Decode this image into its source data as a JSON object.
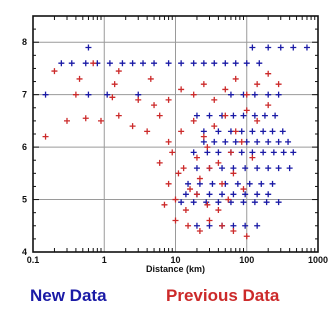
{
  "chart_data": {
    "type": "scatter",
    "title": "",
    "xlabel": "Distance (km)",
    "ylabel": "",
    "xscale": "log",
    "xlim": [
      0.1,
      1000
    ],
    "ylim": [
      4,
      8.5
    ],
    "xticks": [
      {
        "value": 0.1,
        "label": "0.1"
      },
      {
        "value": 1,
        "label": "1"
      },
      {
        "value": 10,
        "label": "10"
      },
      {
        "value": 100,
        "label": "100"
      },
      {
        "value": 1000,
        "label": "1000"
      }
    ],
    "yticks": [
      {
        "value": 4,
        "label": "4"
      },
      {
        "value": 5,
        "label": "5"
      },
      {
        "value": 6,
        "label": "6"
      },
      {
        "value": 7,
        "label": "7"
      },
      {
        "value": 8,
        "label": "8"
      }
    ],
    "grid": true,
    "legend_position": "bottom",
    "series": [
      {
        "name": "New Data",
        "color": "#1a1aa6",
        "marker": "plus",
        "points": [
          [
            0.25,
            7.6
          ],
          [
            0.35,
            7.6
          ],
          [
            0.55,
            7.6
          ],
          [
            0.8,
            7.6
          ],
          [
            1.2,
            7.6
          ],
          [
            1.8,
            7.6
          ],
          [
            2.5,
            7.6
          ],
          [
            3.5,
            7.6
          ],
          [
            5,
            7.6
          ],
          [
            8,
            7.6
          ],
          [
            12,
            7.6
          ],
          [
            18,
            7.6
          ],
          [
            25,
            7.6
          ],
          [
            35,
            7.6
          ],
          [
            50,
            7.6
          ],
          [
            70,
            7.6
          ],
          [
            100,
            7.6
          ],
          [
            150,
            7.6
          ],
          [
            0.6,
            7.9
          ],
          [
            120,
            7.9
          ],
          [
            200,
            7.9
          ],
          [
            300,
            7.9
          ],
          [
            450,
            7.9
          ],
          [
            700,
            7.9
          ],
          [
            0.15,
            7.0
          ],
          [
            0.6,
            7.0
          ],
          [
            1.1,
            7.0
          ],
          [
            3,
            7.0
          ],
          [
            60,
            7.0
          ],
          [
            90,
            7.0
          ],
          [
            130,
            7.0
          ],
          [
            200,
            7.0
          ],
          [
            280,
            7.0
          ],
          [
            20,
            6.6
          ],
          [
            30,
            6.6
          ],
          [
            45,
            6.6
          ],
          [
            65,
            6.6
          ],
          [
            90,
            6.6
          ],
          [
            130,
            6.6
          ],
          [
            180,
            6.6
          ],
          [
            250,
            6.6
          ],
          [
            25,
            6.3
          ],
          [
            40,
            6.3
          ],
          [
            60,
            6.3
          ],
          [
            85,
            6.3
          ],
          [
            120,
            6.3
          ],
          [
            170,
            6.3
          ],
          [
            230,
            6.3
          ],
          [
            320,
            6.3
          ],
          [
            25,
            6.1
          ],
          [
            35,
            6.1
          ],
          [
            50,
            6.1
          ],
          [
            70,
            6.1
          ],
          [
            100,
            6.1
          ],
          [
            140,
            6.1
          ],
          [
            200,
            6.1
          ],
          [
            280,
            6.1
          ],
          [
            380,
            6.1
          ],
          [
            18,
            5.9
          ],
          [
            28,
            5.9
          ],
          [
            40,
            5.9
          ],
          [
            60,
            5.9
          ],
          [
            85,
            5.9
          ],
          [
            120,
            5.9
          ],
          [
            170,
            5.9
          ],
          [
            240,
            5.9
          ],
          [
            330,
            5.9
          ],
          [
            450,
            5.9
          ],
          [
            20,
            5.6
          ],
          [
            30,
            5.6
          ],
          [
            45,
            5.6
          ],
          [
            65,
            5.6
          ],
          [
            95,
            5.6
          ],
          [
            140,
            5.6
          ],
          [
            200,
            5.6
          ],
          [
            280,
            5.6
          ],
          [
            400,
            5.6
          ],
          [
            15,
            5.3
          ],
          [
            22,
            5.3
          ],
          [
            33,
            5.3
          ],
          [
            50,
            5.3
          ],
          [
            75,
            5.3
          ],
          [
            110,
            5.3
          ],
          [
            160,
            5.3
          ],
          [
            230,
            5.3
          ],
          [
            14,
            5.1
          ],
          [
            20,
            5.1
          ],
          [
            30,
            5.1
          ],
          [
            45,
            5.1
          ],
          [
            65,
            5.1
          ],
          [
            95,
            5.1
          ],
          [
            140,
            5.1
          ],
          [
            200,
            5.1
          ],
          [
            12,
            4.95
          ],
          [
            18,
            4.95
          ],
          [
            27,
            4.95
          ],
          [
            40,
            4.95
          ],
          [
            60,
            4.95
          ],
          [
            90,
            4.95
          ],
          [
            130,
            4.95
          ],
          [
            190,
            4.95
          ],
          [
            280,
            4.95
          ],
          [
            20,
            4.5
          ],
          [
            30,
            4.5
          ],
          [
            45,
            4.5
          ],
          [
            65,
            4.5
          ],
          [
            95,
            4.5
          ],
          [
            140,
            4.5
          ]
        ]
      },
      {
        "name": "Previous Data",
        "color": "#cc2a2a",
        "marker": "plus",
        "points": [
          [
            0.2,
            7.45
          ],
          [
            0.45,
            7.3
          ],
          [
            0.7,
            7.6
          ],
          [
            1.4,
            7.2
          ],
          [
            1.6,
            7.45
          ],
          [
            0.4,
            7.0
          ],
          [
            1.3,
            6.95
          ],
          [
            3,
            6.9
          ],
          [
            4.5,
            7.3
          ],
          [
            0.15,
            6.2
          ],
          [
            0.3,
            6.5
          ],
          [
            0.55,
            6.55
          ],
          [
            0.9,
            6.5
          ],
          [
            1.6,
            6.6
          ],
          [
            2.5,
            6.4
          ],
          [
            4,
            6.3
          ],
          [
            6,
            6.6
          ],
          [
            5,
            6.8
          ],
          [
            8,
            6.9
          ],
          [
            12,
            7.1
          ],
          [
            18,
            7.0
          ],
          [
            25,
            7.2
          ],
          [
            35,
            6.9
          ],
          [
            50,
            7.1
          ],
          [
            70,
            7.3
          ],
          [
            100,
            7.0
          ],
          [
            140,
            7.2
          ],
          [
            200,
            7.4
          ],
          [
            280,
            7.2
          ],
          [
            8,
            6.1
          ],
          [
            12,
            6.3
          ],
          [
            18,
            6.5
          ],
          [
            25,
            6.2
          ],
          [
            35,
            6.4
          ],
          [
            50,
            6.6
          ],
          [
            70,
            6.3
          ],
          [
            100,
            6.7
          ],
          [
            140,
            6.5
          ],
          [
            200,
            6.8
          ],
          [
            6,
            5.7
          ],
          [
            9,
            5.9
          ],
          [
            13,
            5.6
          ],
          [
            20,
            5.8
          ],
          [
            28,
            6.0
          ],
          [
            40,
            5.7
          ],
          [
            60,
            5.9
          ],
          [
            85,
            6.1
          ],
          [
            120,
            5.8
          ],
          [
            8,
            5.3
          ],
          [
            11,
            5.5
          ],
          [
            16,
            5.2
          ],
          [
            22,
            5.4
          ],
          [
            30,
            5.6
          ],
          [
            45,
            5.3
          ],
          [
            65,
            5.5
          ],
          [
            90,
            5.2
          ],
          [
            7,
            4.9
          ],
          [
            10,
            5.0
          ],
          [
            14,
            4.8
          ],
          [
            20,
            5.1
          ],
          [
            28,
            4.9
          ],
          [
            40,
            4.8
          ],
          [
            55,
            5.0
          ],
          [
            10,
            4.6
          ],
          [
            15,
            4.5
          ],
          [
            22,
            4.4
          ],
          [
            30,
            4.6
          ],
          [
            45,
            4.5
          ],
          [
            65,
            4.4
          ],
          [
            100,
            4.3
          ]
        ]
      }
    ]
  },
  "legend": {
    "new_label": "New Data",
    "previous_label": "Previous Data",
    "new_color": "#1a1aa6",
    "previous_color": "#cc2a2a"
  }
}
